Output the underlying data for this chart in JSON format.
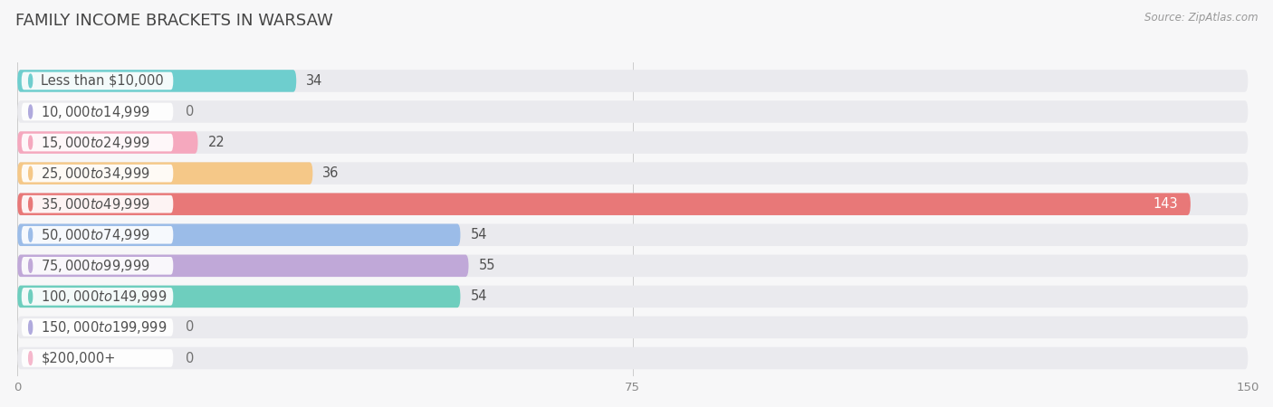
{
  "title": "FAMILY INCOME BRACKETS IN WARSAW",
  "source": "Source: ZipAtlas.com",
  "categories": [
    "Less than $10,000",
    "$10,000 to $14,999",
    "$15,000 to $24,999",
    "$25,000 to $34,999",
    "$35,000 to $49,999",
    "$50,000 to $74,999",
    "$75,000 to $99,999",
    "$100,000 to $149,999",
    "$150,000 to $199,999",
    "$200,000+"
  ],
  "values": [
    34,
    0,
    22,
    36,
    143,
    54,
    55,
    54,
    0,
    0
  ],
  "bar_colors": [
    "#6ECECE",
    "#B0AADD",
    "#F5A8BE",
    "#F5C888",
    "#E87878",
    "#9BBCE8",
    "#C0A8D8",
    "#6ECEBE",
    "#B0AADD",
    "#F5B8CC"
  ],
  "xlim": [
    0,
    150
  ],
  "xticks": [
    0,
    75,
    150
  ],
  "bg_color": "#F7F7F8",
  "bar_bg_color": "#EAEAEE",
  "title_fontsize": 13,
  "label_fontsize": 10.5,
  "value_fontsize": 10.5
}
